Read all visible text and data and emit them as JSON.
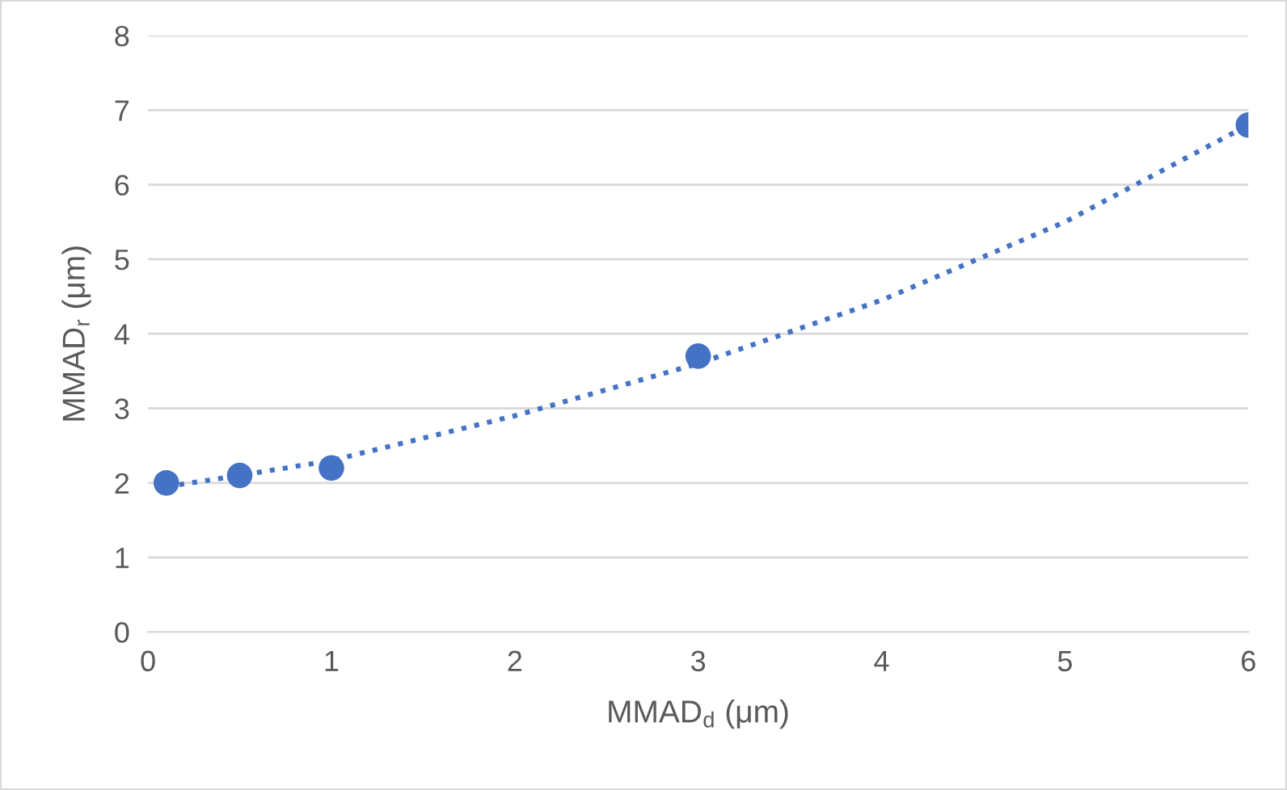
{
  "chart_data": {
    "type": "scatter",
    "xlabel": "MMAD$_{d}$ (μm)",
    "ylabel": "MMAD$_{r}$ (μm)",
    "x": [
      0.1,
      0.5,
      1,
      3,
      6
    ],
    "series": [
      {
        "color": "#4472c4",
        "values": [
          2.0,
          2.1,
          2.2,
          3.7,
          6.8
        ],
        "marker": "circle"
      },
      {
        "type": "line",
        "color": "#4472c4",
        "x": [
          0.1,
          0.5,
          1,
          2,
          3,
          4,
          5,
          6
        ],
        "values": [
          1.95,
          2.1,
          2.3,
          2.9,
          3.6,
          4.45,
          5.5,
          6.8
        ],
        "line_style": "dotted",
        "marker": "none"
      }
    ],
    "xlim": [
      0,
      6
    ],
    "xticks": [
      0,
      1,
      2,
      3,
      4,
      5,
      6
    ],
    "ylim": [
      0,
      8
    ],
    "yticks": [
      0,
      1,
      2,
      3,
      4,
      5,
      6,
      7,
      8
    ],
    "grid": "y"
  }
}
